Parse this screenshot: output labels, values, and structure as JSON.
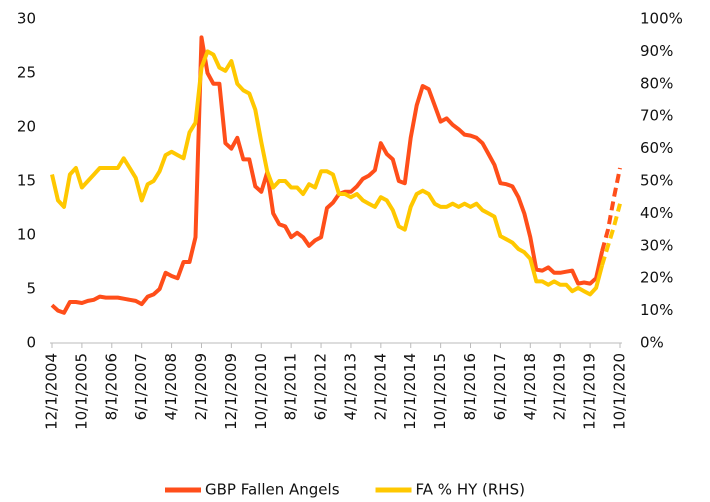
{
  "chart_data": {
    "type": "line",
    "categories": [
      "12/1/2004",
      null,
      null,
      null,
      null,
      "10/1/2005",
      null,
      null,
      null,
      null,
      "8/1/2006",
      null,
      null,
      null,
      null,
      "6/1/2007",
      null,
      null,
      null,
      null,
      "4/1/2008",
      null,
      null,
      null,
      null,
      "2/1/2009",
      null,
      null,
      null,
      null,
      "12/1/2009",
      null,
      null,
      null,
      null,
      "10/1/2010",
      null,
      null,
      null,
      null,
      "8/1/2011",
      null,
      null,
      null,
      null,
      "6/1/2012",
      null,
      null,
      null,
      null,
      "4/1/2013",
      null,
      null,
      null,
      null,
      "2/1/2014",
      null,
      null,
      null,
      null,
      "12/1/2014",
      null,
      null,
      null,
      null,
      "10/1/2015",
      null,
      null,
      null,
      null,
      "8/1/2016",
      null,
      null,
      null,
      null,
      "6/1/2017",
      null,
      null,
      null,
      null,
      "4/1/2018",
      null,
      null,
      null,
      null,
      "2/1/2019",
      null,
      null,
      null,
      null,
      "12/1/2019",
      null,
      null,
      null,
      null,
      "10/1/2020"
    ],
    "series": [
      {
        "name": "GBP Fallen Angels",
        "color": "#ff4e1a",
        "values": [
          3.5,
          3.0,
          2.8,
          3.8,
          3.8,
          3.7,
          3.9,
          4.0,
          4.3,
          4.2,
          4.2,
          4.2,
          4.1,
          4.0,
          3.9,
          3.6,
          4.3,
          4.5,
          5.0,
          6.5,
          6.2,
          6.0,
          7.5,
          7.5,
          9.8,
          28.3,
          25,
          24,
          24,
          18.5,
          18,
          19,
          17,
          17,
          14.5,
          14,
          15.8,
          12,
          11,
          10.8,
          9.8,
          10.2,
          9.8,
          9.0,
          9.5,
          9.8,
          12.5,
          13,
          13.8,
          14,
          14,
          14.5,
          15.2,
          15.5,
          16,
          18.5,
          17.5,
          17,
          15,
          14.8,
          19,
          22,
          23.8,
          23.5,
          22,
          20.5,
          20.8,
          20.2,
          19.8,
          19.3,
          19.2,
          19.0,
          18.5,
          17.5,
          16.5,
          14.8,
          14.7,
          14.5,
          13.5,
          12.0,
          9.8,
          6.8,
          6.7,
          7.0,
          6.5,
          6.5,
          6.6,
          6.7,
          5.5,
          5.6,
          5.5,
          6.0,
          8.5,
          10.5,
          13.5,
          16.2
        ]
      },
      {
        "name": "FA % HY (RHS)",
        "color": "#ffc800",
        "axis": "y2",
        "values": [
          52,
          44,
          42,
          52,
          54,
          48,
          50,
          52,
          54,
          54,
          54,
          54,
          57,
          54,
          51,
          44,
          49,
          50,
          53,
          58,
          59,
          58,
          57,
          65,
          68,
          85,
          90,
          89,
          85,
          84,
          87,
          80,
          78,
          77,
          72,
          62,
          53,
          48,
          50,
          50,
          48,
          48,
          46,
          49,
          48,
          53,
          53,
          52,
          46,
          46,
          45,
          46,
          44,
          43,
          42,
          45,
          44,
          41,
          36,
          35,
          42,
          46,
          47,
          46,
          43,
          42,
          42,
          43,
          42,
          43,
          42,
          43,
          41,
          40,
          39,
          33,
          32,
          31,
          29,
          28,
          26,
          19,
          19,
          18,
          19,
          18,
          18,
          16,
          17,
          16,
          15,
          17,
          24,
          30,
          36,
          43
        ]
      }
    ],
    "dashed_from": 92,
    "ylim": [
      0,
      30
    ],
    "yticks": [
      0,
      5,
      10,
      15,
      20,
      25,
      30
    ],
    "y2lim": [
      0,
      100
    ],
    "y2ticks": [
      {
        "value": 0,
        "label": "0%"
      },
      {
        "value": 10,
        "label": "10%"
      },
      {
        "value": 20,
        "label": "20%"
      },
      {
        "value": 30,
        "label": "30%"
      },
      {
        "value": 40,
        "label": "40%"
      },
      {
        "value": 50,
        "label": "50%"
      },
      {
        "value": 60,
        "label": "60%"
      },
      {
        "value": 70,
        "label": "70%"
      },
      {
        "value": 80,
        "label": "80%"
      },
      {
        "value": 90,
        "label": "90%"
      },
      {
        "value": 100,
        "label": "100%"
      }
    ],
    "legend": "bottom"
  }
}
